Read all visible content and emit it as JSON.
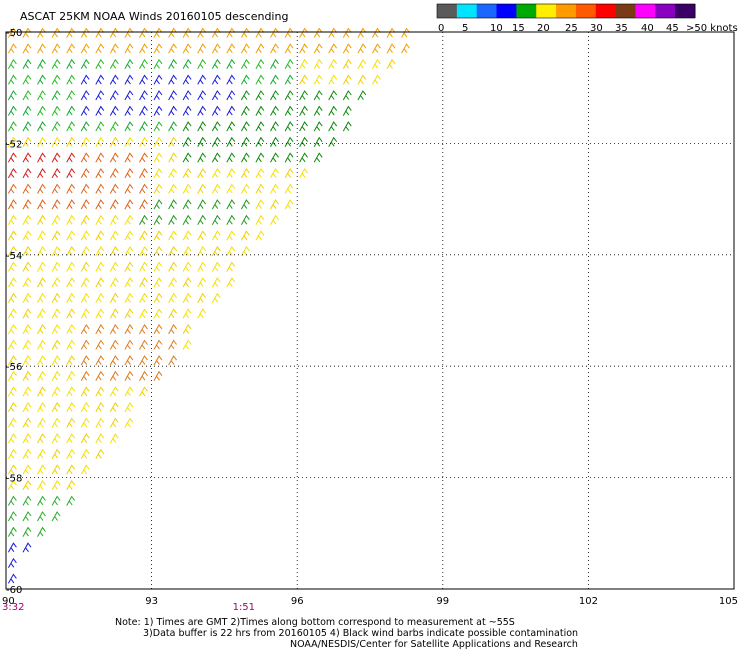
{
  "title": "ASCAT 25KM NOAA Winds 20160105 descending",
  "colorbar": {
    "labels": [
      "0",
      "5",
      "10",
      "15",
      "20",
      "25",
      "30",
      "35",
      "40",
      "45",
      ">50 knots"
    ],
    "colors": [
      "#5a5a5a",
      "#00e5ff",
      "#1a66ff",
      "#0000ff",
      "#00aa00",
      "#ffee00",
      "#ff9a00",
      "#ff5a00",
      "#ff0000",
      "#7a3a16",
      "#ff00ff",
      "#8a00c0",
      "#3a0066"
    ]
  },
  "chart_data": {
    "type": "scatter",
    "subtype": "wind-barb map",
    "xlabel": "",
    "ylabel": "",
    "xlim": [
      90,
      105
    ],
    "ylim": [
      -60,
      -50
    ],
    "x_ticks": [
      "90",
      "93",
      "96",
      "99",
      "102",
      "105"
    ],
    "y_ticks": [
      "-50",
      "-52",
      "-54",
      "-56",
      "-58",
      "-60"
    ],
    "grid": true,
    "grid_style": "dotted",
    "time_labels": [
      {
        "x": 90,
        "text": "3:32",
        "color": "#a00070"
      },
      {
        "x": 94.9,
        "text": "1:51",
        "color": "#a00070"
      }
    ],
    "swath": {
      "description": "triangular swath of wind barbs in the upper-left region",
      "vertices_lon_lat": [
        [
          90,
          -50
        ],
        [
          98.5,
          -50
        ],
        [
          90,
          -60
        ]
      ]
    },
    "wind_regions": [
      {
        "name": "green-blue band",
        "speed_knots": "10-20",
        "approx_lon": [
          90,
          96
        ],
        "approx_lat": [
          -50.5,
          -52
        ]
      },
      {
        "name": "orange-red patch",
        "speed_knots": "25-35",
        "approx_lon": [
          90,
          92.5
        ],
        "approx_lat": [
          -52,
          -53.5
        ]
      },
      {
        "name": "yellow field",
        "speed_knots": "20-25",
        "approx_lon": [
          90,
          96
        ],
        "approx_lat": [
          -52,
          -58.5
        ]
      },
      {
        "name": "green-blue corner",
        "speed_knots": "10-20",
        "approx_lon": [
          90,
          91.5
        ],
        "approx_lat": [
          -58.5,
          -60
        ]
      }
    ]
  },
  "notes": [
    "Note: 1) Times are GMT 2)Times along bottom correspond to measurement at ~55S",
    "3)Data buffer is 22 hrs from 20160105 4) Black wind barbs indicate possible contamination",
    "NOAA/NESDIS/Center for Satellite Applications and Research"
  ]
}
